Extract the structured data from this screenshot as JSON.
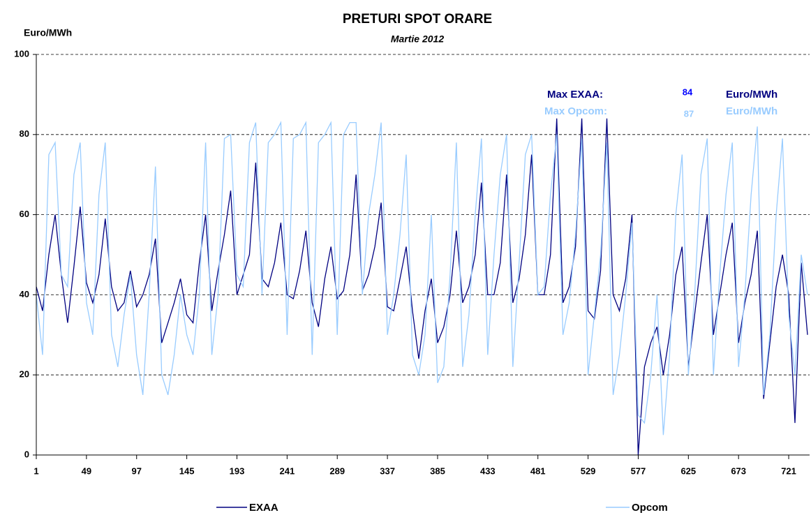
{
  "chart_data": {
    "type": "line",
    "title": "PRETURI SPOT ORARE",
    "subtitle": "Martie 2012",
    "y_label": "Euro/MWh",
    "xlim": [
      1,
      741
    ],
    "xticks": [
      1,
      49,
      97,
      145,
      193,
      241,
      289,
      337,
      385,
      433,
      481,
      529,
      577,
      625,
      673,
      721
    ],
    "ylim": [
      0,
      100
    ],
    "yticks": [
      0,
      20,
      40,
      60,
      80,
      100
    ],
    "grid": true,
    "legend": "bottom",
    "x": [
      1,
      7,
      13,
      19,
      25,
      31,
      37,
      43,
      49,
      55,
      61,
      67,
      73,
      79,
      85,
      91,
      97,
      103,
      109,
      115,
      121,
      127,
      133,
      139,
      145,
      151,
      157,
      163,
      169,
      175,
      181,
      187,
      193,
      199,
      205,
      211,
      217,
      223,
      229,
      235,
      241,
      247,
      253,
      259,
      265,
      271,
      277,
      283,
      289,
      295,
      301,
      307,
      313,
      319,
      325,
      331,
      337,
      343,
      349,
      355,
      361,
      367,
      373,
      379,
      385,
      391,
      397,
      403,
      409,
      415,
      421,
      427,
      433,
      439,
      445,
      451,
      457,
      463,
      469,
      475,
      481,
      487,
      493,
      499,
      505,
      511,
      517,
      523,
      529,
      535,
      541,
      547,
      553,
      559,
      565,
      571,
      577,
      583,
      589,
      595,
      601,
      607,
      613,
      619,
      625,
      631,
      637,
      643,
      649,
      655,
      661,
      667,
      673,
      679,
      685,
      691,
      697,
      703,
      709,
      715,
      721,
      727,
      733,
      739
    ],
    "series": [
      {
        "name": "EXAA",
        "color": "#000080",
        "values": [
          42,
          36,
          50,
          60,
          45,
          33,
          47,
          62,
          43,
          38,
          45,
          59,
          42,
          36,
          38,
          46,
          37,
          40,
          45,
          54,
          28,
          33,
          38,
          44,
          35,
          33,
          48,
          60,
          36,
          46,
          55,
          66,
          40,
          45,
          50,
          73,
          44,
          42,
          48,
          58,
          40,
          39,
          46,
          56,
          38,
          32,
          44,
          52,
          39,
          41,
          50,
          70,
          41,
          45,
          52,
          63,
          37,
          36,
          44,
          52,
          36,
          24,
          36,
          44,
          28,
          32,
          40,
          56,
          38,
          42,
          50,
          68,
          40,
          40,
          48,
          70,
          38,
          44,
          55,
          75,
          40,
          40,
          50,
          84,
          38,
          42,
          52,
          84,
          36,
          34,
          46,
          84,
          40,
          36,
          44,
          60,
          0,
          22,
          28,
          32,
          20,
          30,
          45,
          52,
          22,
          35,
          48,
          60,
          30,
          40,
          50,
          58,
          28,
          38,
          45,
          56,
          14,
          28,
          42,
          50,
          40,
          8,
          48,
          30
        ]
      },
      {
        "name": "Opcom",
        "color": "#99ccff",
        "values": [
          40,
          25,
          75,
          78,
          45,
          42,
          70,
          78,
          38,
          30,
          65,
          78,
          30,
          22,
          35,
          45,
          25,
          15,
          40,
          72,
          20,
          15,
          25,
          40,
          30,
          25,
          40,
          78,
          25,
          40,
          79,
          80,
          45,
          42,
          78,
          83,
          40,
          78,
          80,
          83,
          30,
          79,
          80,
          83,
          25,
          78,
          80,
          83,
          30,
          80,
          83,
          83,
          40,
          60,
          70,
          83,
          30,
          40,
          55,
          75,
          25,
          20,
          30,
          60,
          18,
          22,
          45,
          78,
          22,
          35,
          60,
          79,
          25,
          50,
          70,
          80,
          22,
          48,
          75,
          80,
          40,
          42,
          65,
          80,
          30,
          38,
          55,
          79,
          20,
          35,
          50,
          78,
          15,
          25,
          40,
          58,
          10,
          8,
          20,
          40,
          5,
          25,
          60,
          75,
          20,
          40,
          70,
          79,
          20,
          45,
          65,
          78,
          22,
          40,
          65,
          82,
          15,
          30,
          60,
          79,
          35,
          20,
          50,
          40
        ]
      }
    ],
    "annotations": [
      {
        "text": "Max EXAA:",
        "color": "#000080"
      },
      {
        "text": "84",
        "color": "#0000ff"
      },
      {
        "text": "Euro/MWh",
        "color": "#000080"
      },
      {
        "text": "Max Opcom:",
        "color": "#99ccff"
      },
      {
        "text": "87",
        "color": "#99ccff"
      },
      {
        "text": "Euro/MWh",
        "color": "#99ccff"
      }
    ]
  }
}
